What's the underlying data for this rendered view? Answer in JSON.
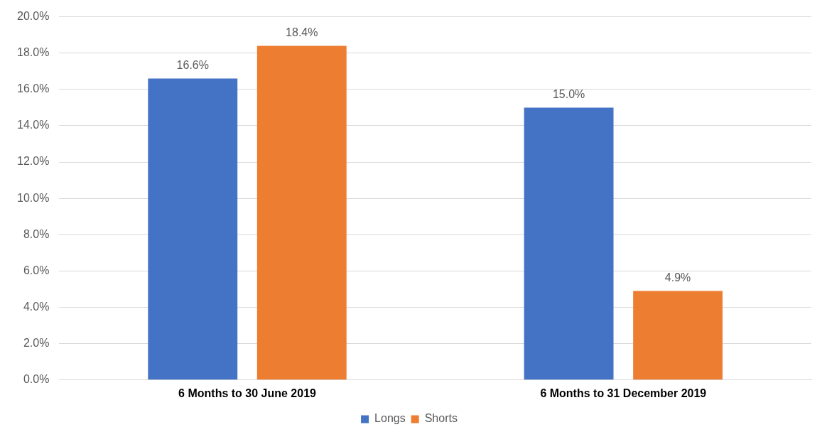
{
  "chart_data": {
    "type": "bar",
    "categories": [
      "6 Months to 30 June 2019",
      "6 Months to 31 December 2019"
    ],
    "series": [
      {
        "name": "Longs",
        "color": "#4472c4",
        "values": [
          16.6,
          15.0
        ],
        "value_labels": [
          "16.6%",
          "15.0%"
        ]
      },
      {
        "name": "Shorts",
        "color": "#ed7d31",
        "values": [
          18.4,
          4.9
        ],
        "value_labels": [
          "18.4%",
          "4.9%"
        ]
      }
    ],
    "ylim": [
      0,
      20
    ],
    "yticks": [
      {
        "value": 0,
        "label": "0.0%"
      },
      {
        "value": 2,
        "label": "2.0%"
      },
      {
        "value": 4,
        "label": "4.0%"
      },
      {
        "value": 6,
        "label": "6.0%"
      },
      {
        "value": 8,
        "label": "8.0%"
      },
      {
        "value": 10,
        "label": "10.0%"
      },
      {
        "value": 12,
        "label": "12.0%"
      },
      {
        "value": 14,
        "label": "14.0%"
      },
      {
        "value": 16,
        "label": "16.0%"
      },
      {
        "value": 18,
        "label": "18.0%"
      },
      {
        "value": 20,
        "label": "20.0%"
      }
    ],
    "grid": "y",
    "legend": "bottom"
  }
}
